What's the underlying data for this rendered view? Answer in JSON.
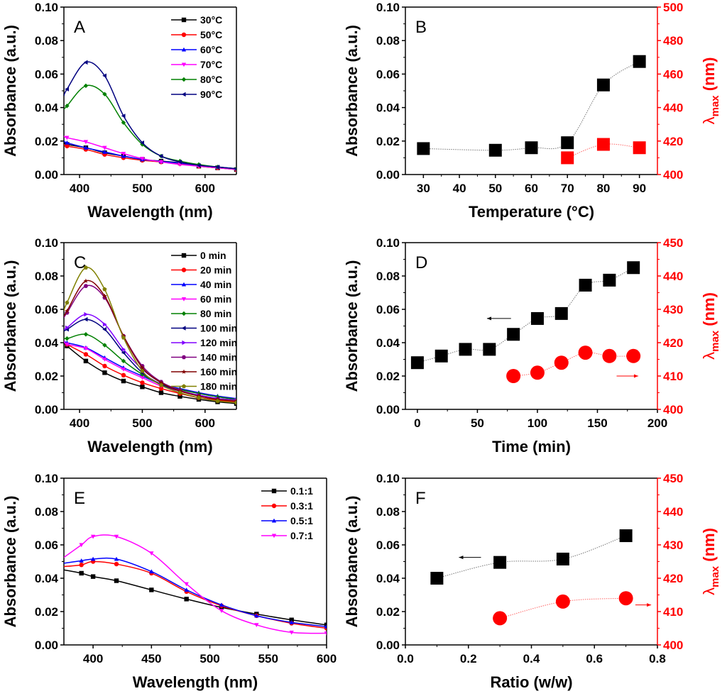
{
  "chart_data": [
    {
      "id": "A",
      "type": "line",
      "panel_label": "A",
      "xlabel": "Wavelength (nm)",
      "ylabel": "Absorbance (a.u.)",
      "xlim": [
        375,
        650
      ],
      "ylim": [
        0,
        0.1
      ],
      "xticks": [
        400,
        500,
        600
      ],
      "yticks": [
        0.0,
        0.02,
        0.04,
        0.06,
        0.08,
        0.1
      ],
      "ytick_labels": [
        "0.00",
        "0.02",
        "0.04",
        "0.06",
        "0.08",
        "0.10"
      ],
      "legend_position": "top-right",
      "x": [
        375,
        380,
        410,
        440,
        470,
        500,
        530,
        560,
        590,
        620,
        650
      ],
      "series": [
        {
          "name": "30°C",
          "color": "#000000",
          "marker": "square",
          "values": [
            0.019,
            0.018,
            0.016,
            0.013,
            0.011,
            0.009,
            0.008,
            0.007,
            0.005,
            0.004,
            0.003
          ]
        },
        {
          "name": "50°C",
          "color": "#ff0000",
          "marker": "circle",
          "values": [
            0.018,
            0.017,
            0.015,
            0.012,
            0.01,
            0.0085,
            0.0075,
            0.0065,
            0.005,
            0.004,
            0.003
          ]
        },
        {
          "name": "60°C",
          "color": "#0000ff",
          "marker": "triangle-up",
          "values": [
            0.02,
            0.019,
            0.016,
            0.0135,
            0.011,
            0.009,
            0.0078,
            0.0068,
            0.0055,
            0.0045,
            0.0035
          ]
        },
        {
          "name": "70°C",
          "color": "#ff00ff",
          "marker": "triangle-down",
          "values": [
            0.023,
            0.022,
            0.0195,
            0.016,
            0.0125,
            0.0095,
            0.0075,
            0.006,
            0.005,
            0.004,
            0.003
          ]
        },
        {
          "name": "80°C",
          "color": "#008000",
          "marker": "diamond",
          "values": [
            0.039,
            0.041,
            0.053,
            0.048,
            0.031,
            0.018,
            0.011,
            0.008,
            0.006,
            0.0045,
            0.0035
          ]
        },
        {
          "name": "90°C",
          "color": "#000080",
          "marker": "triangle-left",
          "values": [
            0.047,
            0.051,
            0.067,
            0.059,
            0.035,
            0.019,
            0.011,
            0.0075,
            0.0055,
            0.0045,
            0.0035
          ]
        }
      ]
    },
    {
      "id": "B",
      "type": "scatter",
      "panel_label": "B",
      "xlabel": "Temperature (°C)",
      "ylabel": "Absorbance (a.u.)",
      "y2label": "λmax (nm)",
      "xlim": [
        25,
        95
      ],
      "ylim": [
        0,
        0.1
      ],
      "y2lim": [
        400,
        500
      ],
      "xticks": [
        30,
        40,
        50,
        60,
        70,
        80,
        90
      ],
      "yticks": [
        0.0,
        0.02,
        0.04,
        0.06,
        0.08,
        0.1
      ],
      "ytick_labels": [
        "0.00",
        "0.02",
        "0.04",
        "0.06",
        "0.08",
        "0.10"
      ],
      "y2ticks": [
        400,
        420,
        440,
        460,
        480,
        500
      ],
      "series": [
        {
          "name": "Absorbance",
          "axis": "left",
          "color": "#000000",
          "marker": "square",
          "x": [
            30,
            50,
            60,
            70,
            80,
            90
          ],
          "values": [
            0.0155,
            0.0145,
            0.016,
            0.019,
            0.0535,
            0.0675
          ]
        },
        {
          "name": "λmax",
          "axis": "right",
          "color": "#ff0000",
          "marker": "square",
          "x": [
            70,
            80,
            90
          ],
          "values": [
            410,
            418,
            416
          ]
        }
      ]
    },
    {
      "id": "C",
      "type": "line",
      "panel_label": "C",
      "xlabel": "Wavelength (nm)",
      "ylabel": "Absorbance (a.u.)",
      "xlim": [
        375,
        650
      ],
      "ylim": [
        0,
        0.1
      ],
      "xticks": [
        400,
        500,
        600
      ],
      "yticks": [
        0.0,
        0.02,
        0.04,
        0.06,
        0.08,
        0.1
      ],
      "ytick_labels": [
        "0.00",
        "0.02",
        "0.04",
        "0.06",
        "0.08",
        "0.10"
      ],
      "legend_position": "top-right",
      "x": [
        375,
        380,
        410,
        440,
        470,
        500,
        530,
        560,
        590,
        620,
        650
      ],
      "series": [
        {
          "name": "0 min",
          "color": "#000000",
          "marker": "square",
          "values": [
            0.04,
            0.038,
            0.029,
            0.022,
            0.017,
            0.0135,
            0.01,
            0.0078,
            0.006,
            0.0045,
            0.0035
          ]
        },
        {
          "name": "20 min",
          "color": "#ff0000",
          "marker": "circle",
          "values": [
            0.041,
            0.039,
            0.033,
            0.026,
            0.0205,
            0.016,
            0.0125,
            0.0095,
            0.007,
            0.0055,
            0.0045
          ]
        },
        {
          "name": "40 min",
          "color": "#0000ff",
          "marker": "triangle-up",
          "values": [
            0.041,
            0.04,
            0.037,
            0.031,
            0.025,
            0.02,
            0.015,
            0.0125,
            0.01,
            0.008,
            0.0065
          ]
        },
        {
          "name": "60 min",
          "color": "#ff00ff",
          "marker": "triangle-down",
          "values": [
            0.041,
            0.039,
            0.0365,
            0.03,
            0.024,
            0.019,
            0.014,
            0.011,
            0.0085,
            0.0065,
            0.0055
          ]
        },
        {
          "name": "80 min",
          "color": "#008000",
          "marker": "diamond",
          "values": [
            0.043,
            0.0425,
            0.045,
            0.0385,
            0.029,
            0.021,
            0.015,
            0.012,
            0.0095,
            0.0075,
            0.006
          ]
        },
        {
          "name": "100 min",
          "color": "#000080",
          "marker": "triangle-left",
          "values": [
            0.047,
            0.048,
            0.054,
            0.048,
            0.034,
            0.022,
            0.015,
            0.011,
            0.0085,
            0.0065,
            0.0055
          ]
        },
        {
          "name": "120 min",
          "color": "#8000ff",
          "marker": "triangle-right",
          "values": [
            0.048,
            0.049,
            0.057,
            0.051,
            0.036,
            0.024,
            0.016,
            0.0115,
            0.0085,
            0.0065,
            0.0055
          ]
        },
        {
          "name": "140 min",
          "color": "#800080",
          "marker": "hexagon",
          "values": [
            0.055,
            0.058,
            0.074,
            0.067,
            0.044,
            0.026,
            0.0165,
            0.0115,
            0.008,
            0.006,
            0.005
          ]
        },
        {
          "name": "160 min",
          "color": "#800000",
          "marker": "star",
          "values": [
            0.056,
            0.059,
            0.077,
            0.068,
            0.044,
            0.025,
            0.016,
            0.011,
            0.008,
            0.006,
            0.005
          ]
        },
        {
          "name": "180 min",
          "color": "#808000",
          "marker": "pentagon",
          "values": [
            0.059,
            0.064,
            0.085,
            0.072,
            0.043,
            0.023,
            0.0145,
            0.01,
            0.007,
            0.005,
            0.004
          ]
        }
      ]
    },
    {
      "id": "D",
      "type": "scatter",
      "panel_label": "D",
      "xlabel": "Time (min)",
      "ylabel": "Absorbance (a.u.)",
      "y2label": "λmax (nm)",
      "xlim": [
        -10,
        200
      ],
      "ylim": [
        0,
        0.1
      ],
      "y2lim": [
        400,
        450
      ],
      "xticks": [
        0,
        50,
        100,
        150,
        200
      ],
      "yticks": [
        0.0,
        0.02,
        0.04,
        0.06,
        0.08,
        0.1
      ],
      "ytick_labels": [
        "0.00",
        "0.02",
        "0.04",
        "0.06",
        "0.08",
        "0.10"
      ],
      "y2ticks": [
        400,
        410,
        420,
        430,
        440,
        450
      ],
      "annotations": [
        "arrow-left (Absorbance axis)",
        "arrow-right (λmax axis)"
      ],
      "series": [
        {
          "name": "Absorbance",
          "axis": "left",
          "color": "#000000",
          "marker": "square",
          "x": [
            0,
            20,
            40,
            60,
            80,
            100,
            120,
            140,
            160,
            180
          ],
          "values": [
            0.028,
            0.032,
            0.036,
            0.036,
            0.045,
            0.0545,
            0.0575,
            0.0745,
            0.0775,
            0.085
          ]
        },
        {
          "name": "λmax",
          "axis": "right",
          "color": "#ff0000",
          "marker": "circle",
          "x": [
            80,
            100,
            120,
            140,
            160,
            180
          ],
          "values": [
            410,
            411,
            414,
            417,
            416,
            416
          ]
        }
      ]
    },
    {
      "id": "E",
      "type": "line",
      "panel_label": "E",
      "xlabel": "Wavelength (nm)",
      "ylabel": "Absorbance (a.u.)",
      "xlim": [
        375,
        600
      ],
      "ylim": [
        0,
        0.1
      ],
      "xticks": [
        400,
        450,
        500,
        550,
        600
      ],
      "yticks": [
        0.0,
        0.02,
        0.04,
        0.06,
        0.08,
        0.1
      ],
      "ytick_labels": [
        "0.00",
        "0.02",
        "0.04",
        "0.06",
        "0.08",
        "0.10"
      ],
      "legend_position": "top-right",
      "x": [
        375,
        390,
        400,
        420,
        450,
        480,
        510,
        540,
        570,
        600
      ],
      "series": [
        {
          "name": "0.1:1",
          "color": "#000000",
          "marker": "square",
          "values": [
            0.045,
            0.043,
            0.041,
            0.0385,
            0.033,
            0.0275,
            0.0225,
            0.0185,
            0.015,
            0.012
          ]
        },
        {
          "name": "0.3:1",
          "color": "#ff0000",
          "marker": "circle",
          "values": [
            0.047,
            0.048,
            0.05,
            0.0485,
            0.043,
            0.032,
            0.0235,
            0.0175,
            0.013,
            0.01
          ]
        },
        {
          "name": "0.5:1",
          "color": "#0000ff",
          "marker": "triangle-up",
          "values": [
            0.049,
            0.0505,
            0.0515,
            0.0515,
            0.044,
            0.033,
            0.024,
            0.0175,
            0.0135,
            0.011
          ]
        },
        {
          "name": "0.7:1",
          "color": "#ff00ff",
          "marker": "triangle-down",
          "values": [
            0.0525,
            0.06,
            0.065,
            0.065,
            0.055,
            0.0365,
            0.0205,
            0.012,
            0.0075,
            0.007
          ]
        }
      ]
    },
    {
      "id": "F",
      "type": "scatter",
      "panel_label": "F",
      "xlabel": "Ratio (w/w)",
      "ylabel": "Absorbance (a.u.)",
      "y2label": "λmax (nm)",
      "xlim": [
        0.0,
        0.8
      ],
      "ylim": [
        0,
        0.1
      ],
      "y2lim": [
        400,
        450
      ],
      "xticks": [
        0.0,
        0.2,
        0.4,
        0.6,
        0.8
      ],
      "xtick_labels": [
        "0.0",
        "0.2",
        "0.4",
        "0.6",
        "0.8"
      ],
      "yticks": [
        0.0,
        0.02,
        0.04,
        0.06,
        0.08,
        0.1
      ],
      "ytick_labels": [
        "0.00",
        "0.02",
        "0.04",
        "0.06",
        "0.08",
        "0.10"
      ],
      "y2ticks": [
        400,
        410,
        420,
        430,
        440,
        450
      ],
      "annotations": [
        "arrow-left (Absorbance axis)",
        "arrow-right (λmax axis)"
      ],
      "series": [
        {
          "name": "Absorbance",
          "axis": "left",
          "color": "#000000",
          "marker": "square",
          "x": [
            0.1,
            0.3,
            0.5,
            0.7
          ],
          "values": [
            0.04,
            0.0495,
            0.0515,
            0.0655
          ]
        },
        {
          "name": "λmax",
          "axis": "right",
          "color": "#ff0000",
          "marker": "circle",
          "x": [
            0.3,
            0.5,
            0.7
          ],
          "values": [
            408,
            413,
            414
          ]
        }
      ]
    }
  ]
}
